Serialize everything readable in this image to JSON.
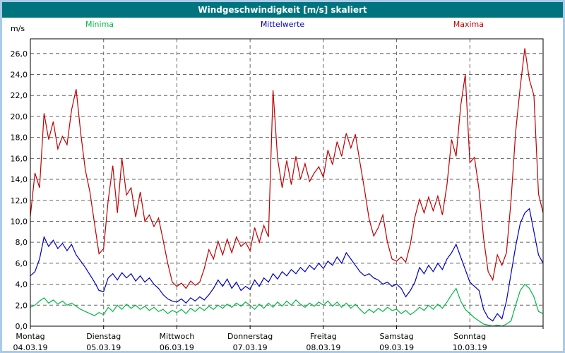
{
  "window": {
    "title": "Windgeschwindigkeit [m/s] skaliert"
  },
  "colors": {
    "titlebar_bg": "#00747e",
    "border": "#a9cbe8",
    "grid": "#666666",
    "axis": "#000000"
  },
  "legend": [
    {
      "label": "Minima",
      "color": "#00b844"
    },
    {
      "label": "Mittelwerte",
      "color": "#0000bf"
    },
    {
      "label": "Maxima",
      "color": "#bf0000"
    }
  ],
  "chart_data": {
    "type": "line",
    "title": "Windgeschwindigkeit [m/s] skaliert",
    "ylabel": "m/s",
    "xlabel": "",
    "ylim": [
      0,
      27.4
    ],
    "grid": "dashed",
    "legend_position": "top",
    "yticks": [
      26,
      24,
      22,
      20,
      18,
      16,
      14,
      12,
      10,
      8,
      6,
      4,
      2,
      0
    ],
    "ytick_labels": [
      "26,0",
      "24,0",
      "22,0",
      "20,0",
      "18,0",
      "16,0",
      "14,0",
      "12,0",
      "10,0",
      "8,0",
      "6,0",
      "4,0",
      "2,0",
      "0,0"
    ],
    "x_days": [
      {
        "name": "Montag",
        "date": "04.03.19"
      },
      {
        "name": "Dienstag",
        "date": "05.03.19"
      },
      {
        "name": "Mittwoch",
        "date": "06.03.19"
      },
      {
        "name": "Donnerstag",
        "date": "07.03.19"
      },
      {
        "name": "Freitag",
        "date": "08.03.19"
      },
      {
        "name": "Samstag",
        "date": "09.03.19"
      },
      {
        "name": "Sonntag",
        "date": "10.03.19"
      }
    ],
    "points_per_day": 16,
    "series": [
      {
        "name": "Maxima",
        "color": "#bf0000",
        "values": [
          10.5,
          14.6,
          13.2,
          20.3,
          17.8,
          19.5,
          16.9,
          18.1,
          17.3,
          20.6,
          22.6,
          18.4,
          14.9,
          12.8,
          9.8,
          6.9,
          7.4,
          12.0,
          15.3,
          10.8,
          16.0,
          12.5,
          13.2,
          10.4,
          12.8,
          10.0,
          10.6,
          9.5,
          10.3,
          8.2,
          6.0,
          4.2,
          3.8,
          4.1,
          3.6,
          4.3,
          3.9,
          4.2,
          5.5,
          7.3,
          6.4,
          8.1,
          6.8,
          8.3,
          7.0,
          8.5,
          7.6,
          8.0,
          7.2,
          9.4,
          8.0,
          9.6,
          8.5,
          22.5,
          16.0,
          13.2,
          15.8,
          13.5,
          16.2,
          14.0,
          15.5,
          13.8,
          14.6,
          15.2,
          14.2,
          16.8,
          15.4,
          17.6,
          16.2,
          18.4,
          17.0,
          18.3,
          15.6,
          13.0,
          10.2,
          8.6,
          9.4,
          10.6,
          8.0,
          6.4,
          6.2,
          6.6,
          6.1,
          7.8,
          10.4,
          12.1,
          10.8,
          12.3,
          11.0,
          12.4,
          10.6,
          13.5,
          17.8,
          16.2,
          21.0,
          24.0,
          15.6,
          16.1,
          13.0,
          8.4,
          5.2,
          4.4,
          6.8,
          5.8,
          7.0,
          12.0,
          18.5,
          22.8,
          26.5,
          23.5,
          22.0,
          12.6,
          10.8
        ]
      },
      {
        "name": "Mittelwerte",
        "color": "#0000bf",
        "values": [
          4.8,
          5.2,
          6.4,
          8.5,
          7.6,
          8.2,
          7.4,
          7.9,
          7.2,
          7.8,
          6.8,
          6.2,
          5.6,
          4.9,
          4.2,
          3.4,
          3.3,
          4.6,
          5.0,
          4.4,
          5.1,
          4.6,
          5.0,
          4.3,
          4.8,
          4.2,
          4.6,
          4.0,
          3.6,
          3.0,
          2.6,
          2.4,
          2.3,
          2.6,
          2.2,
          2.7,
          2.4,
          2.8,
          2.5,
          3.0,
          3.6,
          4.4,
          3.8,
          4.5,
          3.6,
          4.2,
          3.4,
          3.8,
          3.5,
          4.4,
          3.8,
          4.6,
          4.2,
          5.0,
          4.5,
          5.2,
          4.8,
          5.4,
          5.0,
          5.6,
          5.2,
          5.8,
          5.4,
          6.0,
          5.5,
          6.2,
          5.8,
          6.6,
          6.0,
          7.0,
          6.4,
          5.8,
          5.2,
          4.8,
          5.0,
          4.6,
          4.4,
          4.0,
          4.2,
          3.8,
          4.0,
          3.6,
          2.8,
          3.4,
          4.2,
          5.6,
          5.0,
          5.8,
          5.2,
          6.0,
          5.4,
          6.4,
          7.0,
          7.8,
          6.6,
          5.4,
          4.2,
          3.8,
          3.4,
          1.6,
          0.8,
          0.5,
          1.2,
          0.7,
          2.4,
          5.0,
          7.6,
          9.8,
          10.8,
          11.2,
          9.0,
          6.8,
          6.0
        ]
      },
      {
        "name": "Minima",
        "color": "#00b844",
        "values": [
          1.8,
          2.0,
          2.4,
          2.7,
          2.2,
          2.5,
          2.1,
          2.4,
          2.0,
          2.2,
          1.9,
          1.6,
          1.4,
          1.2,
          1.0,
          1.3,
          1.1,
          1.8,
          1.4,
          2.0,
          1.6,
          2.1,
          1.7,
          2.0,
          1.6,
          1.9,
          1.5,
          1.8,
          1.4,
          1.6,
          1.2,
          1.5,
          1.3,
          1.6,
          1.2,
          1.7,
          1.4,
          1.8,
          1.5,
          1.9,
          1.6,
          2.0,
          1.7,
          2.1,
          1.8,
          2.2,
          1.9,
          2.3,
          2.0,
          1.6,
          2.1,
          1.7,
          2.2,
          1.8,
          2.3,
          1.9,
          2.4,
          2.0,
          2.5,
          2.1,
          1.8,
          2.2,
          1.9,
          2.3,
          2.0,
          2.4,
          1.9,
          2.3,
          1.8,
          2.2,
          1.7,
          2.1,
          1.6,
          1.2,
          1.6,
          1.3,
          1.7,
          1.4,
          1.8,
          1.5,
          1.6,
          1.2,
          1.5,
          1.1,
          1.4,
          1.8,
          1.5,
          2.0,
          1.6,
          2.1,
          1.7,
          2.3,
          3.0,
          3.6,
          2.4,
          1.6,
          1.2,
          0.8,
          0.5,
          0.2,
          0.1,
          0.0,
          0.1,
          0.0,
          0.2,
          0.5,
          2.0,
          3.4,
          4.0,
          3.6,
          2.8,
          1.4,
          1.2
        ]
      }
    ]
  }
}
